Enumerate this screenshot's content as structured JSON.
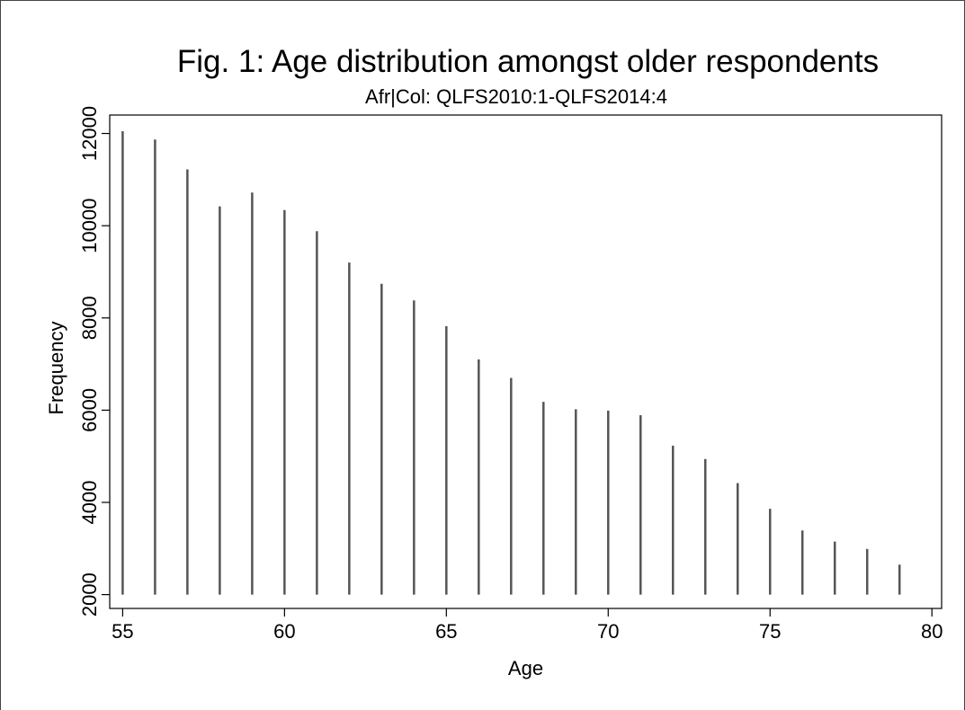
{
  "chart_data": {
    "type": "bar",
    "title": "Fig. 1: Age distribution amongst older respondents",
    "subtitle": "Afr|Col: QLFS2010:1-QLFS2014:4",
    "xlabel": "Age",
    "ylabel": "Frequency",
    "x": [
      55,
      56,
      57,
      58,
      59,
      60,
      61,
      62,
      63,
      64,
      65,
      66,
      67,
      68,
      69,
      70,
      71,
      72,
      73,
      74,
      75,
      76,
      77,
      78,
      79
    ],
    "values": [
      12050,
      11870,
      11220,
      10420,
      10720,
      10340,
      9880,
      9200,
      8740,
      8380,
      7820,
      7100,
      6700,
      6180,
      6020,
      5990,
      5890,
      5230,
      4940,
      4420,
      3860,
      3390,
      3150,
      2990,
      2650
    ],
    "base": 2000,
    "xlim": [
      54.6,
      80.3
    ],
    "ylim": [
      1700,
      12400
    ],
    "xticks": [
      55,
      60,
      65,
      70,
      75,
      80
    ],
    "yticks": [
      2000,
      4000,
      6000,
      8000,
      10000,
      12000
    ],
    "bar_color": "#555555",
    "grid": false
  }
}
